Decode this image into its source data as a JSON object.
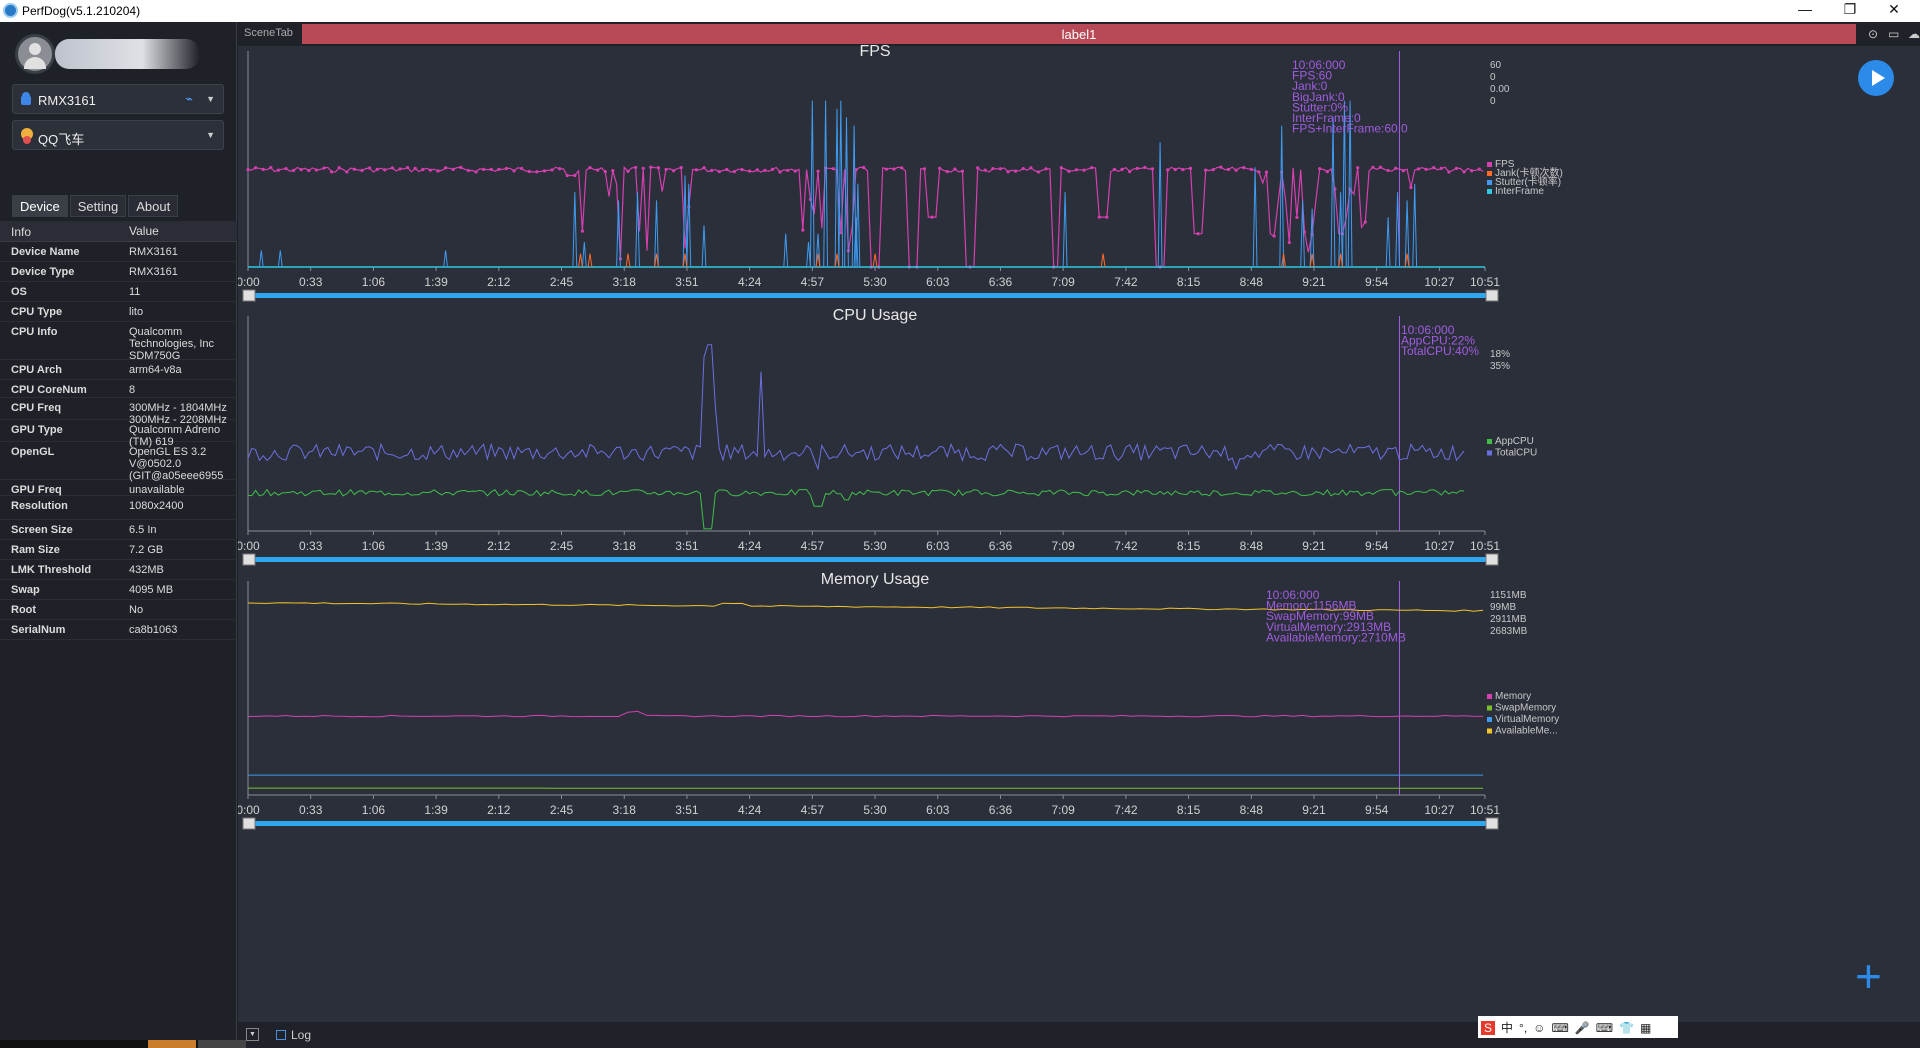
{
  "window": {
    "title": "PerfDog(v5.1.210204)",
    "minimize": "—",
    "restore": "❐",
    "close": "✕"
  },
  "sidebar": {
    "device_select": "RMX3161",
    "app_select": "QQ飞车",
    "tabs": [
      "Device",
      "Setting",
      "About"
    ],
    "info_header": [
      "Info",
      "Value"
    ],
    "info_rows": [
      {
        "k": "Device Name",
        "v": "RMX3161"
      },
      {
        "k": "Device Type",
        "v": "RMX3161"
      },
      {
        "k": "OS",
        "v": "11"
      },
      {
        "k": "CPU Type",
        "v": "lito"
      },
      {
        "k": "CPU Info",
        "v": "Qualcomm Technologies, Inc SDM750G"
      },
      {
        "k": "CPU Arch",
        "v": "arm64-v8a"
      },
      {
        "k": "CPU CoreNum",
        "v": "8"
      },
      {
        "k": "CPU Freq",
        "v": "300MHz - 1804MHz 300MHz - 2208MHz"
      },
      {
        "k": "GPU Type",
        "v": "Qualcomm Adreno (TM) 619"
      },
      {
        "k": "OpenGL",
        "v": "OpenGL ES 3.2 V@0502.0 (GIT@a05eee6955"
      },
      {
        "k": "GPU Freq",
        "v": "unavailable"
      },
      {
        "k": "Resolution",
        "v": "1080x2400"
      },
      {
        "k": "Screen Size",
        "v": "6.5 In"
      },
      {
        "k": "Ram Size",
        "v": "7.2 GB"
      },
      {
        "k": "LMK Threshold",
        "v": "432MB"
      },
      {
        "k": "Swap",
        "v": "4095 MB"
      },
      {
        "k": "Root",
        "v": "No"
      },
      {
        "k": "SerialNum",
        "v": "ca8b1063"
      }
    ]
  },
  "main": {
    "scene_tab": "SceneTab",
    "label": "label1",
    "log_label": "Log"
  },
  "tray": {
    "items": [
      "S",
      "中",
      "°,",
      "☺",
      "⌨",
      "🎤",
      "⌨",
      "👕",
      "▦"
    ]
  },
  "colors": {
    "fps": "#d63fb0",
    "jank": "#ff6a2a",
    "stutter": "#3e9bf0",
    "interframe": "#2ec8e0",
    "appcpu": "#3fbf4a",
    "totalcpu": "#6c6fe0",
    "memory": "#d63fb0",
    "swap": "#7bc02a",
    "virtual": "#3e9bf0",
    "available": "#f2c22b",
    "cursor": "#9b5fe0",
    "annotation": "#a05ce0"
  },
  "chart_data": [
    {
      "type": "line",
      "title": "FPS",
      "ylabel": "FPS",
      "ylim": [
        0,
        125
      ],
      "yticks": [
        "0",
        "25",
        "50",
        "75",
        "100",
        "125"
      ],
      "xticks": [
        "0:00",
        "0:33",
        "1:06",
        "1:39",
        "2:12",
        "2:45",
        "3:18",
        "3:51",
        "4:24",
        "4:57",
        "5:30",
        "6:03",
        "6:36",
        "7:09",
        "7:42",
        "8:15",
        "8:48",
        "9:21",
        "9:54",
        "10:27",
        "10:51"
      ],
      "x_range_seconds": [
        0,
        651
      ],
      "cursor_time": "10:06",
      "annotation": [
        "10:06:000",
        "FPS:60",
        "Jank:0",
        "BigJank:0",
        "Stutter:0%",
        "InterFrame:0",
        "FPS+InterFrame:60.0"
      ],
      "right_values": [
        "60",
        "0",
        "0.00",
        "0"
      ],
      "legend": [
        "FPS",
        "Jank(卡顿次数)",
        "Stutter(卡顿率)",
        "InterFrame"
      ],
      "series": [
        {
          "name": "FPS",
          "baseline": 60,
          "dips": [
            [
              170,
              55
            ],
            [
              300,
              20
            ],
            [
              330,
              0
            ],
            [
              350,
              0
            ],
            [
              360,
              30
            ],
            [
              380,
              0
            ],
            [
              425,
              0
            ],
            [
              450,
              30
            ],
            [
              480,
              0
            ],
            [
              500,
              20
            ],
            [
              540,
              20
            ],
            [
              560,
              40
            ],
            [
              575,
              20
            ]
          ]
        },
        {
          "name": "Stutter",
          "spikes": [
            [
              7,
              10
            ],
            [
              17,
              10
            ],
            [
              104,
              10
            ],
            [
              172,
              45
            ],
            [
              177,
              15
            ],
            [
              195,
              40
            ],
            [
              205,
              45
            ],
            [
              215,
              40
            ],
            [
              230,
              55
            ],
            [
              240,
              25
            ],
            [
              232,
              50
            ],
            [
              300,
              20
            ],
            [
              295,
              15
            ],
            [
              320,
              30
            ],
            [
              321,
              50
            ],
            [
              283,
              20
            ],
            [
              430,
              45
            ],
            [
              480,
              75
            ],
            [
              530,
              60
            ],
            [
              555,
              40
            ],
            [
              560,
              35
            ],
            [
              575,
              45
            ],
            [
              600,
              30
            ],
            [
              605,
              45
            ],
            [
              610,
              40
            ],
            [
              614,
              50
            ]
          ]
        },
        {
          "name": "Stutter-high",
          "spikes": [
            [
              297,
              100
            ],
            [
              304,
              100
            ],
            [
              312,
              100
            ],
            [
              315,
              90
            ],
            [
              310,
              95
            ],
            [
              319,
              85
            ],
            [
              544,
              85
            ],
            [
              571,
              90
            ],
            [
              577,
              100
            ],
            [
              580,
              100
            ]
          ]
        }
      ]
    },
    {
      "type": "line",
      "title": "CPU Usage",
      "ylabel": "%",
      "ylim": [
        0,
        100
      ],
      "yticks": [
        "0",
        "10",
        "20",
        "30",
        "40",
        "50",
        "60",
        "70",
        "80",
        "90",
        "100"
      ],
      "xticks": [
        "0:00",
        "0:33",
        "1:06",
        "1:39",
        "2:12",
        "2:45",
        "3:18",
        "3:51",
        "4:24",
        "4:57",
        "5:30",
        "6:03",
        "6:36",
        "7:09",
        "7:42",
        "8:15",
        "8:48",
        "9:21",
        "9:54",
        "10:27",
        "10:51"
      ],
      "x_range_seconds": [
        0,
        651
      ],
      "cursor_time": "10:06",
      "annotation": [
        "10:06:000",
        "AppCPU:22%",
        "TotalCPU:40%"
      ],
      "right_values": [
        "18%",
        "35%"
      ],
      "legend": [
        "AppCPU",
        "TotalCPU"
      ],
      "series": [
        {
          "name": "AppCPU",
          "baseline": 17,
          "events": [
            [
              242,
              1
            ],
            [
              292,
              20
            ],
            [
              300,
              12
            ],
            [
              315,
              15
            ],
            [
              412,
              18
            ],
            [
              600,
              20
            ]
          ]
        },
        {
          "name": "TotalCPU",
          "baseline": 36,
          "events": [
            [
              240,
              84
            ],
            [
              243,
              90
            ],
            [
              246,
              60
            ],
            [
              270,
              77
            ],
            [
              300,
              30
            ],
            [
              520,
              30
            ],
            [
              600,
              40
            ]
          ]
        }
      ]
    },
    {
      "type": "line",
      "title": "Memory Usage",
      "ylabel": "MB",
      "ylim": [
        0,
        3000
      ],
      "yticks": [
        "0",
        "500",
        "1,000",
        "1,500",
        "2,000",
        "2,500",
        "3,000"
      ],
      "xticks": [
        "0:00",
        "0:33",
        "1:06",
        "1:39",
        "2:12",
        "2:45",
        "3:18",
        "3:51",
        "4:24",
        "4:57",
        "5:30",
        "6:03",
        "6:36",
        "7:09",
        "7:42",
        "8:15",
        "8:48",
        "9:21",
        "9:54",
        "10:27",
        "10:51"
      ],
      "x_range_seconds": [
        0,
        651
      ],
      "cursor_time": "10:06",
      "annotation": [
        "10:06:000",
        "Memory:1156MB",
        "SwapMemory:99MB",
        "VirtualMemory:2913MB",
        "AvailableMemory:2710MB"
      ],
      "right_values": [
        "1151MB",
        "99MB",
        "2911MB",
        "2683MB"
      ],
      "legend": [
        "Memory",
        "SwapMemory",
        "VirtualMemory",
        "AvailableMe..."
      ],
      "series": [
        {
          "name": "Memory",
          "start": 1150,
          "end": 1150
        },
        {
          "name": "SwapMemory",
          "start": 100,
          "end": 99
        },
        {
          "name": "VirtualMemory",
          "start": 290,
          "end": 290
        },
        {
          "name": "AvailableMemory",
          "start": 2800,
          "end": 2683
        }
      ]
    }
  ]
}
